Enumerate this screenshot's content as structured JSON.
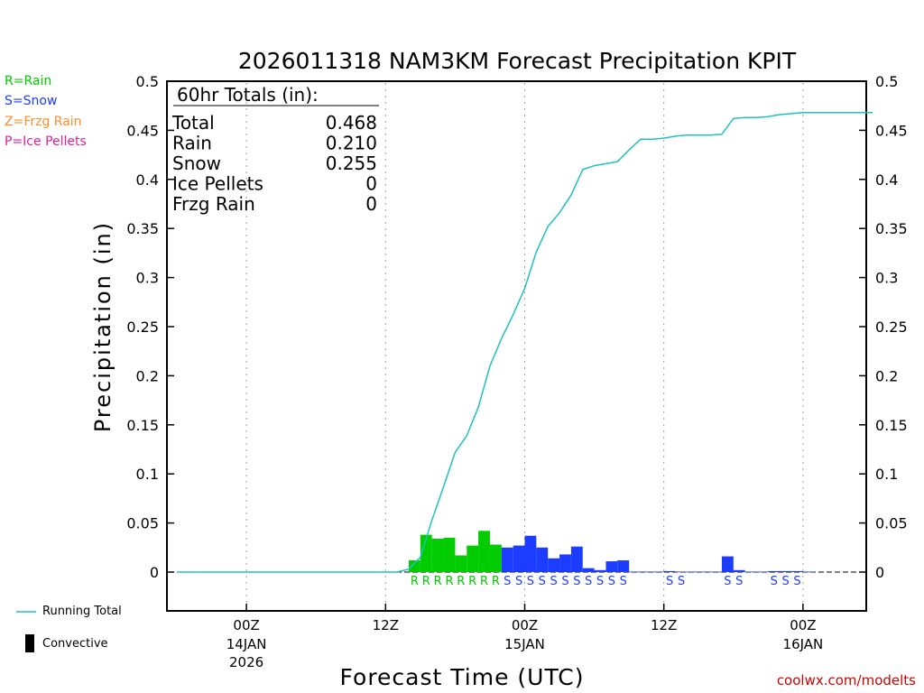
{
  "chart_data": {
    "type": "bar",
    "title": "2026011318 NAM3KM Forecast Precipitation KPIT",
    "xlabel": "Forecast Time (UTC)",
    "ylabel": "Precipitation (in)",
    "ylim": [
      -0.04,
      0.5
    ],
    "y_ticks": [
      "0.5",
      "0.45",
      "0.4",
      "0.35",
      "0.3",
      "0.25",
      "0.2",
      "0.15",
      "0.1",
      "0.05",
      "0"
    ],
    "y_tick_values": [
      0.5,
      0.45,
      0.4,
      0.35,
      0.3,
      0.25,
      0.2,
      0.15,
      0.1,
      0.05,
      0
    ],
    "xlim_hours": [
      0,
      60
    ],
    "x_ticks": [
      {
        "hour": 6,
        "label": "00Z",
        "date": "14JAN",
        "year": "2026"
      },
      {
        "hour": 18,
        "label": "12Z",
        "date": "",
        "year": ""
      },
      {
        "hour": 30,
        "label": "00Z",
        "date": "15JAN",
        "year": ""
      },
      {
        "hour": 42,
        "label": "12Z",
        "date": "",
        "year": ""
      },
      {
        "hour": 54,
        "label": "00Z",
        "date": "16JAN",
        "year": ""
      }
    ],
    "series": [
      {
        "name": "Hourly Precipitation",
        "hours": [
          21,
          22,
          23,
          24,
          25,
          26,
          27,
          28,
          29,
          30,
          31,
          32,
          33,
          34,
          35,
          36,
          37,
          38,
          39,
          40,
          41,
          42,
          43,
          44,
          45,
          46,
          47,
          48,
          49,
          50,
          51,
          52,
          53,
          54,
          55
        ],
        "values": [
          0.012,
          0.038,
          0.034,
          0.035,
          0.017,
          0.027,
          0.042,
          0.028,
          0.025,
          0.027,
          0.037,
          0.025,
          0.014,
          0.018,
          0.026,
          0.004,
          0.002,
          0.011,
          0.012,
          0.0005,
          0.0005,
          0.0005,
          0.001,
          0.0005,
          0.0005,
          0.0005,
          0.0005,
          0.016,
          0.002,
          0.0005,
          0.0005,
          0.001,
          0.001,
          0.001,
          0.0005
        ],
        "ptype": [
          "R",
          "R",
          "R",
          "R",
          "R",
          "R",
          "R",
          "R",
          "S",
          "S",
          "S",
          "S",
          "S",
          "S",
          "S",
          "S",
          "S",
          "S",
          "S",
          "",
          "",
          "",
          "S",
          "S",
          "",
          "",
          "",
          "S",
          "S",
          "",
          "",
          "S",
          "S",
          "S",
          ""
        ]
      },
      {
        "name": "Running Total",
        "hours": [
          0,
          19,
          20,
          21,
          22,
          23,
          24,
          25,
          26,
          27,
          28,
          29,
          30,
          31,
          32,
          33,
          34,
          35,
          36,
          37,
          38,
          39,
          40,
          41,
          42,
          43,
          44,
          45,
          46,
          47,
          48,
          49,
          50,
          51,
          52,
          53,
          54,
          55,
          56,
          57,
          58,
          59,
          60
        ],
        "values": [
          0,
          0,
          0.003,
          0.015,
          0.053,
          0.087,
          0.122,
          0.139,
          0.168,
          0.21,
          0.238,
          0.262,
          0.289,
          0.326,
          0.352,
          0.366,
          0.384,
          0.41,
          0.414,
          0.416,
          0.418,
          0.43,
          0.441,
          0.441,
          0.442,
          0.444,
          0.445,
          0.445,
          0.445,
          0.446,
          0.462,
          0.463,
          0.463,
          0.464,
          0.466,
          0.467,
          0.468,
          0.468,
          0.468,
          0.468,
          0.468,
          0.468,
          0.468
        ],
        "color": "#20c0c0"
      }
    ],
    "totals": {
      "title": "60hr Totals (in):",
      "rows": [
        {
          "label": "Total",
          "value": "0.468"
        },
        {
          "label": "Rain",
          "value": "0.210"
        },
        {
          "label": "Snow",
          "value": "0.255"
        },
        {
          "label": "Ice Pellets",
          "value": "0"
        },
        {
          "label": "Frzg Rain",
          "value": "0"
        }
      ]
    },
    "colors": {
      "rain": "#00cc00",
      "snow": "#1c3cff",
      "frzg": "#ff8c2a",
      "ice": "#e0209a",
      "running": "#20c0c0"
    }
  },
  "legend": {
    "ptypes": [
      {
        "text": "R=Rain",
        "color": "#00cc00"
      },
      {
        "text": "S=Snow",
        "color": "#1c3cff"
      },
      {
        "text": "Z=Frzg Rain",
        "color": "#ff8c2a"
      },
      {
        "text": "P=Ice Pellets",
        "color": "#e0209a"
      }
    ],
    "running_total": "Running Total",
    "convective": "Convective"
  },
  "source": "coolwx.com/modelts"
}
